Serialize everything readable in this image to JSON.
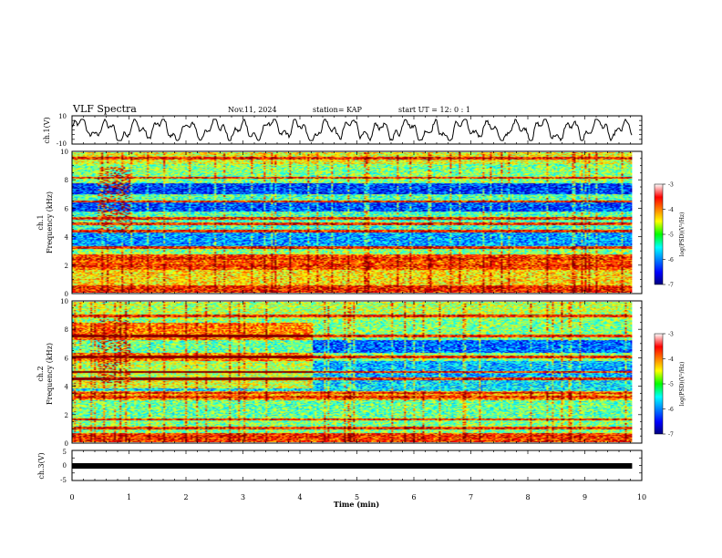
{
  "header": {
    "title": "VLF Spectra",
    "date": "Nov.11, 2024",
    "station": "station= KAP",
    "start": "start  UT =   12: 0  : 1"
  },
  "chart_data": [
    {
      "type": "line",
      "ylabel": "ch.1(V)",
      "ylim": [
        -10,
        10
      ],
      "yticks": [
        "10",
        "-10"
      ],
      "description_x_range": [
        0,
        9.83
      ],
      "color": "#000000"
    },
    {
      "type": "heatmap",
      "ylabel_top": "ch.1",
      "ylabel": "Frequency (kHz)",
      "ylim": [
        0,
        10
      ],
      "yticks": [
        "0",
        "2",
        "4",
        "6",
        "8",
        "10"
      ],
      "colorbar": {
        "label": "log(PSD)(V²/Hz)",
        "range": [
          -7,
          -3
        ],
        "ticks": [
          "-3",
          "-4",
          "-5",
          "-6",
          "-7"
        ]
      },
      "bands": [
        {
          "f0": 0.0,
          "f1": 0.5,
          "level": -3.6
        },
        {
          "f0": 0.5,
          "f1": 1.6,
          "level": -4.4
        },
        {
          "f0": 1.6,
          "f1": 2.7,
          "level": -3.8
        },
        {
          "f0": 2.7,
          "f1": 3.3,
          "level": -5.0
        },
        {
          "f0": 3.3,
          "f1": 4.3,
          "level": -5.9
        },
        {
          "f0": 4.3,
          "f1": 4.9,
          "level": -5.3
        },
        {
          "f0": 4.9,
          "f1": 5.8,
          "level": -5.2
        },
        {
          "f0": 5.8,
          "f1": 6.5,
          "level": -6.2
        },
        {
          "f0": 6.5,
          "f1": 7.0,
          "level": -5.2
        },
        {
          "f0": 7.0,
          "f1": 7.8,
          "level": -6.3
        },
        {
          "f0": 7.8,
          "f1": 9.2,
          "level": -5.0
        },
        {
          "f0": 9.2,
          "f1": 10.0,
          "level": -4.6
        }
      ],
      "lines_khz": [
        0.3,
        1.9,
        2.4,
        3.2,
        4.4,
        4.9,
        5.3,
        6.5,
        8.2,
        9.6
      ]
    },
    {
      "type": "heatmap",
      "ylabel_top": "ch.2",
      "ylabel": "Frequency (kHz)",
      "ylim": [
        0,
        10
      ],
      "yticks": [
        "0",
        "2",
        "4",
        "6",
        "8",
        "10"
      ],
      "colorbar": {
        "label": "log(PSD)(V²/Hz)",
        "range": [
          -7,
          -3
        ],
        "ticks": [
          "-3",
          "-4",
          "-5",
          "-6",
          "-7"
        ]
      },
      "bands": [
        {
          "f0": 0.0,
          "f1": 0.6,
          "level": -3.7
        },
        {
          "f0": 0.6,
          "f1": 1.8,
          "level": -5.0
        },
        {
          "f0": 1.8,
          "f1": 3.0,
          "level": -5.1
        },
        {
          "f0": 3.0,
          "f1": 3.6,
          "level": -4.2
        },
        {
          "f0": 3.6,
          "f1": 4.4,
          "level": -5.6
        },
        {
          "f0": 4.4,
          "f1": 5.8,
          "level": -5.8
        },
        {
          "f0": 5.8,
          "f1": 6.4,
          "level": -5.0
        },
        {
          "f0": 6.4,
          "f1": 7.3,
          "level": -6.1
        },
        {
          "f0": 7.3,
          "f1": 8.8,
          "level": -5.0
        },
        {
          "f0": 8.8,
          "f1": 10.0,
          "level": -4.8
        }
      ],
      "lines_khz": [
        0.4,
        1.0,
        1.6,
        3.2,
        3.5,
        4.5,
        5.0,
        6.1,
        7.6,
        9.0
      ]
    },
    {
      "type": "line",
      "ylabel": "ch.3(V)",
      "ylim": [
        -5,
        5
      ],
      "yticks": [
        "5",
        "0",
        "-5"
      ],
      "value": 0,
      "color": "#000000"
    }
  ],
  "xaxis": {
    "label": "Time  (min)",
    "range": [
      0,
      10
    ],
    "ticks": [
      "0",
      "1",
      "2",
      "3",
      "4",
      "5",
      "6",
      "7",
      "8",
      "9",
      "10"
    ],
    "data_end": 9.83
  }
}
